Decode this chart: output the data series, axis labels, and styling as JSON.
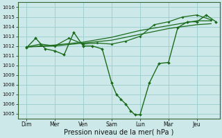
{
  "bg_color": "#cce8e8",
  "grid_color": "#99cccc",
  "line_color": "#1a6b1a",
  "xlabel": "Pression niveau de la mer( hPa )",
  "xlabel_fontsize": 7,
  "ylim": [
    1004.5,
    1016.5
  ],
  "yticks": [
    1005,
    1006,
    1007,
    1008,
    1009,
    1010,
    1011,
    1012,
    1013,
    1014,
    1015,
    1016
  ],
  "ytick_fontsize": 5,
  "xtick_labels": [
    "Dim",
    "Mer",
    "Ven",
    "Sam",
    "Lun",
    "Mar",
    "Jeu"
  ],
  "xtick_pos": [
    0,
    1,
    2,
    3,
    4,
    5,
    6
  ],
  "xtick_fontsize": 5.5,
  "xlim": [
    -0.3,
    6.8
  ],
  "line1_x": [
    0,
    0.33,
    0.67,
    1.0,
    1.33,
    1.67,
    2.0,
    2.33,
    2.67,
    3.0,
    3.17,
    3.33,
    3.5,
    3.67,
    3.83,
    4.0,
    4.33,
    4.67,
    5.0,
    5.33,
    5.67,
    6.0,
    6.33,
    6.67
  ],
  "line1_y": [
    1011.8,
    1012.8,
    1011.7,
    1011.5,
    1011.1,
    1013.4,
    1012.0,
    1012.0,
    1011.7,
    1008.2,
    1007.0,
    1006.5,
    1006.0,
    1005.3,
    1004.9,
    1004.9,
    1008.2,
    1010.2,
    1010.3,
    1013.9,
    1014.5,
    1014.5,
    1015.2,
    1014.5
  ],
  "line2_x": [
    0,
    0.5,
    1.0,
    1.5,
    2.0,
    2.5,
    3.0,
    3.5,
    4.0,
    4.5,
    5.0,
    5.5,
    6.0,
    6.5
  ],
  "line2_y": [
    1011.9,
    1012.2,
    1012.0,
    1012.8,
    1012.2,
    1012.3,
    1012.2,
    1012.5,
    1013.0,
    1014.2,
    1014.5,
    1015.0,
    1015.2,
    1014.7
  ],
  "line3_x": [
    0,
    1.0,
    2.0,
    3.0,
    4.0,
    5.0,
    6.0,
    6.5
  ],
  "line3_y": [
    1011.9,
    1012.0,
    1012.3,
    1012.6,
    1013.2,
    1013.8,
    1014.2,
    1014.3
  ],
  "line4_x": [
    0,
    1.0,
    2.0,
    3.0,
    4.0,
    5.0,
    6.0,
    6.5
  ],
  "line4_y": [
    1011.9,
    1012.1,
    1012.4,
    1012.9,
    1013.6,
    1014.1,
    1014.6,
    1014.6
  ],
  "lw1": 1.0,
  "lw2": 0.9,
  "marker_size": 2.0
}
